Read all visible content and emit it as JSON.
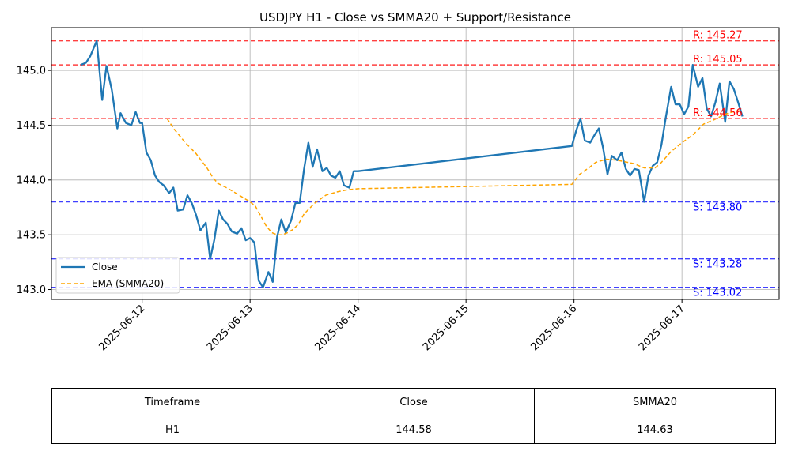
{
  "chart_data": {
    "type": "line",
    "title": "USDJPY H1 - Close vs SMMA20 + Support/Resistance",
    "xlabel": "",
    "ylabel": "",
    "x_ticks": [
      "2025-06-12",
      "2025-06-13",
      "2025-06-14",
      "2025-06-15",
      "2025-06-16",
      "2025-06-17"
    ],
    "y_ticks": [
      "143.0",
      "143.5",
      "144.0",
      "144.5",
      "145.0"
    ],
    "xlim": [
      -0.84,
      5.9
    ],
    "ylim": [
      142.91,
      145.39
    ],
    "grid": true,
    "legend_position": "center-left",
    "series": [
      {
        "name": "Close",
        "color": "#1f77b4",
        "style": "solid",
        "points": [
          [
            -0.57,
            145.05
          ],
          [
            -0.52,
            145.07
          ],
          [
            -0.48,
            145.13
          ],
          [
            -0.42,
            145.27
          ],
          [
            -0.37,
            144.73
          ],
          [
            -0.33,
            145.04
          ],
          [
            -0.28,
            144.82
          ],
          [
            -0.23,
            144.47
          ],
          [
            -0.2,
            144.61
          ],
          [
            -0.15,
            144.52
          ],
          [
            -0.1,
            144.5
          ],
          [
            -0.06,
            144.62
          ],
          [
            -0.02,
            144.52
          ],
          [
            0.0,
            144.52
          ],
          [
            0.04,
            144.25
          ],
          [
            0.08,
            144.18
          ],
          [
            0.12,
            144.04
          ],
          [
            0.16,
            143.98
          ],
          [
            0.2,
            143.95
          ],
          [
            0.25,
            143.88
          ],
          [
            0.29,
            143.93
          ],
          [
            0.33,
            143.72
          ],
          [
            0.38,
            143.73
          ],
          [
            0.42,
            143.86
          ],
          [
            0.46,
            143.79
          ],
          [
            0.5,
            143.68
          ],
          [
            0.54,
            143.54
          ],
          [
            0.59,
            143.61
          ],
          [
            0.63,
            143.28
          ],
          [
            0.67,
            143.46
          ],
          [
            0.71,
            143.72
          ],
          [
            0.75,
            143.64
          ],
          [
            0.79,
            143.6
          ],
          [
            0.83,
            143.53
          ],
          [
            0.88,
            143.51
          ],
          [
            0.92,
            143.56
          ],
          [
            0.96,
            143.45
          ],
          [
            1.0,
            143.47
          ],
          [
            1.04,
            143.43
          ],
          [
            1.08,
            143.08
          ],
          [
            1.12,
            143.02
          ],
          [
            1.17,
            143.16
          ],
          [
            1.21,
            143.07
          ],
          [
            1.25,
            143.48
          ],
          [
            1.29,
            143.64
          ],
          [
            1.33,
            143.52
          ],
          [
            1.38,
            143.63
          ],
          [
            1.42,
            143.79
          ],
          [
            1.46,
            143.79
          ],
          [
            1.5,
            144.1
          ],
          [
            1.54,
            144.34
          ],
          [
            1.58,
            144.12
          ],
          [
            1.62,
            144.28
          ],
          [
            1.67,
            144.08
          ],
          [
            1.71,
            144.11
          ],
          [
            1.75,
            144.04
          ],
          [
            1.79,
            144.02
          ],
          [
            1.83,
            144.08
          ],
          [
            1.87,
            143.95
          ],
          [
            1.92,
            143.93
          ],
          [
            1.96,
            144.08
          ],
          [
            2.0,
            144.08
          ],
          [
            3.98,
            144.31
          ],
          [
            4.02,
            144.45
          ],
          [
            4.06,
            144.56
          ],
          [
            4.1,
            144.36
          ],
          [
            4.15,
            144.34
          ],
          [
            4.19,
            144.41
          ],
          [
            4.23,
            144.47
          ],
          [
            4.27,
            144.29
          ],
          [
            4.31,
            144.05
          ],
          [
            4.35,
            144.22
          ],
          [
            4.4,
            144.18
          ],
          [
            4.44,
            144.25
          ],
          [
            4.48,
            144.1
          ],
          [
            4.52,
            144.04
          ],
          [
            4.56,
            144.1
          ],
          [
            4.6,
            144.09
          ],
          [
            4.65,
            143.8
          ],
          [
            4.69,
            144.04
          ],
          [
            4.73,
            144.13
          ],
          [
            4.77,
            144.16
          ],
          [
            4.81,
            144.32
          ],
          [
            4.85,
            144.57
          ],
          [
            4.9,
            144.85
          ],
          [
            4.94,
            144.69
          ],
          [
            4.98,
            144.69
          ],
          [
            5.02,
            144.6
          ],
          [
            5.06,
            144.67
          ],
          [
            5.1,
            145.05
          ],
          [
            5.15,
            144.85
          ],
          [
            5.19,
            144.93
          ],
          [
            5.23,
            144.65
          ],
          [
            5.27,
            144.58
          ],
          [
            5.31,
            144.71
          ],
          [
            5.35,
            144.88
          ],
          [
            5.4,
            144.53
          ],
          [
            5.44,
            144.9
          ],
          [
            5.48,
            144.83
          ],
          [
            5.52,
            144.71
          ],
          [
            5.56,
            144.58
          ]
        ]
      },
      {
        "name": "EMA (SMMA20)",
        "color": "#ffa500",
        "style": "dashed",
        "points": [
          [
            0.23,
            144.56
          ],
          [
            0.3,
            144.46
          ],
          [
            0.4,
            144.34
          ],
          [
            0.5,
            144.24
          ],
          [
            0.6,
            144.11
          ],
          [
            0.65,
            144.03
          ],
          [
            0.7,
            143.97
          ],
          [
            0.8,
            143.92
          ],
          [
            0.9,
            143.86
          ],
          [
            1.0,
            143.8
          ],
          [
            1.05,
            143.76
          ],
          [
            1.1,
            143.67
          ],
          [
            1.15,
            143.58
          ],
          [
            1.2,
            143.52
          ],
          [
            1.25,
            143.5
          ],
          [
            1.3,
            143.5
          ],
          [
            1.35,
            143.52
          ],
          [
            1.4,
            143.55
          ],
          [
            1.45,
            143.6
          ],
          [
            1.5,
            143.69
          ],
          [
            1.6,
            143.79
          ],
          [
            1.7,
            143.86
          ],
          [
            1.8,
            143.89
          ],
          [
            1.9,
            143.91
          ],
          [
            2.0,
            143.92
          ],
          [
            3.98,
            143.96
          ],
          [
            4.05,
            144.05
          ],
          [
            4.15,
            144.12
          ],
          [
            4.2,
            144.16
          ],
          [
            4.3,
            144.19
          ],
          [
            4.4,
            144.18
          ],
          [
            4.55,
            144.15
          ],
          [
            4.65,
            144.11
          ],
          [
            4.75,
            144.11
          ],
          [
            4.8,
            144.15
          ],
          [
            4.9,
            144.26
          ],
          [
            5.0,
            144.34
          ],
          [
            5.1,
            144.41
          ],
          [
            5.2,
            144.51
          ],
          [
            5.3,
            144.55
          ],
          [
            5.4,
            144.6
          ],
          [
            5.5,
            144.63
          ],
          [
            5.56,
            144.63
          ]
        ]
      }
    ],
    "resistance_levels": [
      {
        "value": 145.27,
        "label": "R: 145.27"
      },
      {
        "value": 145.05,
        "label": "R: 145.05"
      },
      {
        "value": 144.56,
        "label": "R: 144.56"
      }
    ],
    "support_levels": [
      {
        "value": 143.8,
        "label": "S: 143.80"
      },
      {
        "value": 143.28,
        "label": "S: 143.28"
      },
      {
        "value": 143.02,
        "label": "S: 143.02"
      }
    ],
    "level_colors": {
      "resistance": "#ff0000",
      "support": "#0000ff"
    }
  },
  "table": {
    "headers": [
      "Timeframe",
      "Close",
      "SMMA20"
    ],
    "rows": [
      [
        "H1",
        "144.58",
        "144.63"
      ]
    ]
  }
}
